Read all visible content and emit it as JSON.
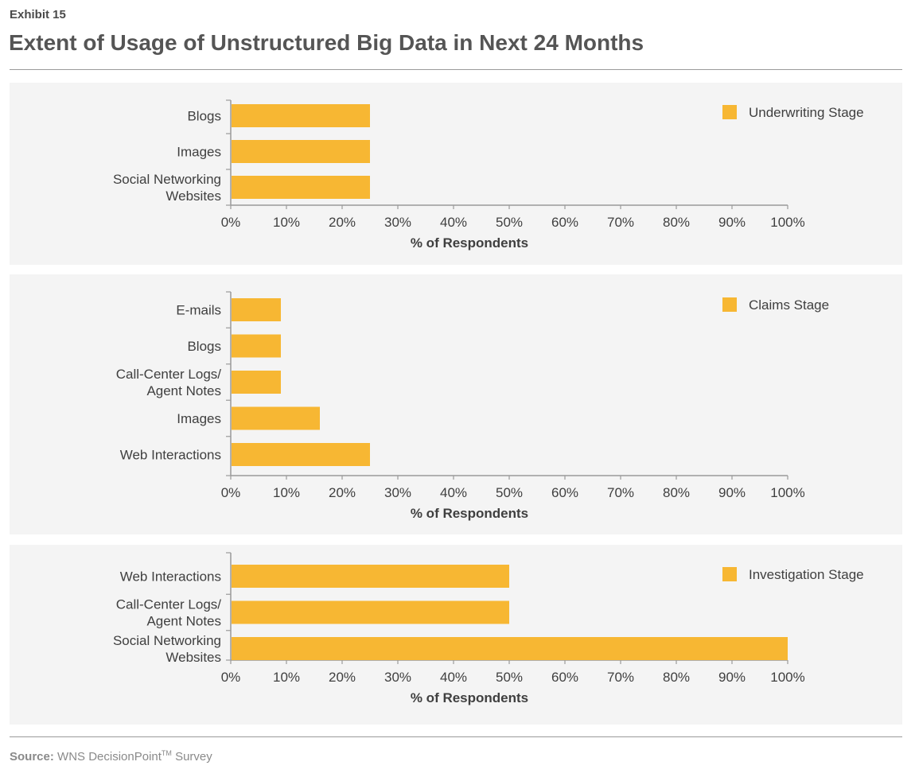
{
  "header": {
    "exhibit": "Exhibit 15",
    "title": "Extent of Usage of Unstructured Big Data in Next 24 Months"
  },
  "footer": {
    "source_label": "Source:",
    "source_text": "WNS DecisionPoint",
    "source_tm": "TM",
    "source_suffix": " Survey"
  },
  "colors": {
    "bar": "#F7B733",
    "panel": "#F4F4F4",
    "axis": "#9A9A9A",
    "text": "#3F3F3F"
  },
  "chart_data": [
    {
      "type": "bar",
      "orientation": "horizontal",
      "categories": [
        [
          "Blogs"
        ],
        [
          "Images"
        ],
        [
          "Social Networking",
          "Websites"
        ]
      ],
      "series": [
        {
          "name": "Underwriting Stage",
          "values": [
            25,
            25,
            25
          ]
        }
      ],
      "xlabel": "% of Respondents",
      "xlim": [
        0,
        100
      ],
      "xticks": [
        "0%",
        "10%",
        "20%",
        "30%",
        "40%",
        "50%",
        "60%",
        "70%",
        "80%",
        "90%",
        "100%"
      ],
      "legend": "top-right",
      "grid": false
    },
    {
      "type": "bar",
      "orientation": "horizontal",
      "categories": [
        [
          "E-mails"
        ],
        [
          "Blogs"
        ],
        [
          "Call-Center Logs/",
          "Agent Notes"
        ],
        [
          "Images"
        ],
        [
          "Web Interactions"
        ]
      ],
      "series": [
        {
          "name": "Claims Stage",
          "values": [
            9,
            9,
            9,
            16,
            25
          ]
        }
      ],
      "xlabel": "% of Respondents",
      "xlim": [
        0,
        100
      ],
      "xticks": [
        "0%",
        "10%",
        "20%",
        "30%",
        "40%",
        "50%",
        "60%",
        "70%",
        "80%",
        "90%",
        "100%"
      ],
      "legend": "top-right",
      "grid": false
    },
    {
      "type": "bar",
      "orientation": "horizontal",
      "categories": [
        [
          "Web Interactions"
        ],
        [
          "Call-Center Logs/",
          "Agent Notes"
        ],
        [
          "Social Networking",
          "Websites"
        ]
      ],
      "series": [
        {
          "name": "Investigation Stage",
          "values": [
            50,
            50,
            100
          ]
        }
      ],
      "xlabel": "% of Respondents",
      "xlim": [
        0,
        100
      ],
      "xticks": [
        "0%",
        "10%",
        "20%",
        "30%",
        "40%",
        "50%",
        "60%",
        "70%",
        "80%",
        "90%",
        "100%"
      ],
      "legend": "top-right",
      "grid": false
    }
  ]
}
